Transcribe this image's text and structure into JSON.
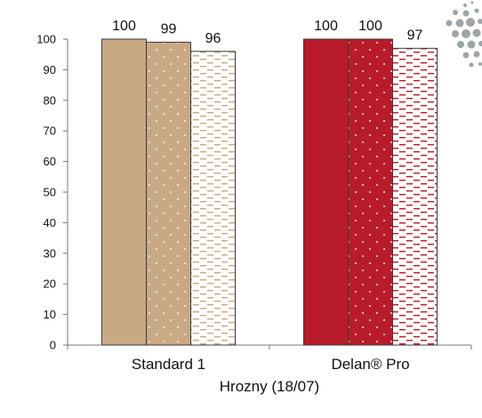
{
  "chart_data": {
    "type": "bar",
    "categories": [
      "Standard 1",
      "Delan® Pro"
    ],
    "series": [
      {
        "values": [
          100,
          100
        ]
      },
      {
        "values": [
          99,
          100
        ]
      },
      {
        "values": [
          96,
          97
        ]
      }
    ],
    "category_colors": [
      "#c8a983",
      "#b81c2a"
    ],
    "patterns": [
      "solid",
      "dots",
      "dashes"
    ],
    "xlabel": "Hrozny (18/07)",
    "ylabel": "",
    "ylim": [
      0,
      100
    ],
    "yticks": [
      0,
      10,
      20,
      30,
      40,
      50,
      60,
      70,
      80,
      90,
      100
    ],
    "grid": false,
    "legend": "none"
  },
  "decor": {
    "dot_color": "#9ea5a8"
  }
}
